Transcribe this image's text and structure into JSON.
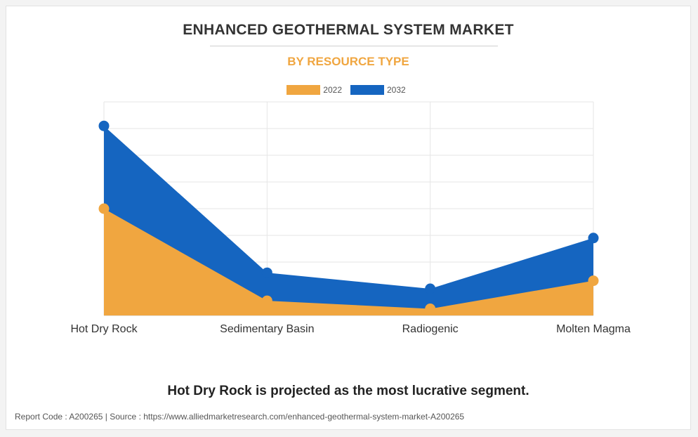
{
  "header": {
    "title": "ENHANCED GEOTHERMAL SYSTEM MARKET",
    "subtitle": "BY RESOURCE TYPE"
  },
  "legend": [
    {
      "label": "2022",
      "color": "#f0a640"
    },
    {
      "label": "2032",
      "color": "#1565c0"
    }
  ],
  "chart_data": {
    "type": "area",
    "categories": [
      "Hot Dry Rock",
      "Sedimentary Basin",
      "Radiogenic",
      "Molten Magma"
    ],
    "series": [
      {
        "name": "2022",
        "color": "#f0a640",
        "values": [
          40,
          5.5,
          2.5,
          13
        ]
      },
      {
        "name": "2032",
        "color": "#1565c0",
        "values": [
          71,
          16,
          10,
          29
        ]
      }
    ],
    "ylim": [
      0,
      80
    ],
    "grid": true,
    "legend_position": "top-center",
    "stacked": false
  },
  "headline": "Hot Dry Rock is projected as the most lucrative segment.",
  "footer": {
    "text": "Report Code : A200265  |  Source : https://www.alliedmarketresearch.com/enhanced-geothermal-system-market-A200265"
  }
}
